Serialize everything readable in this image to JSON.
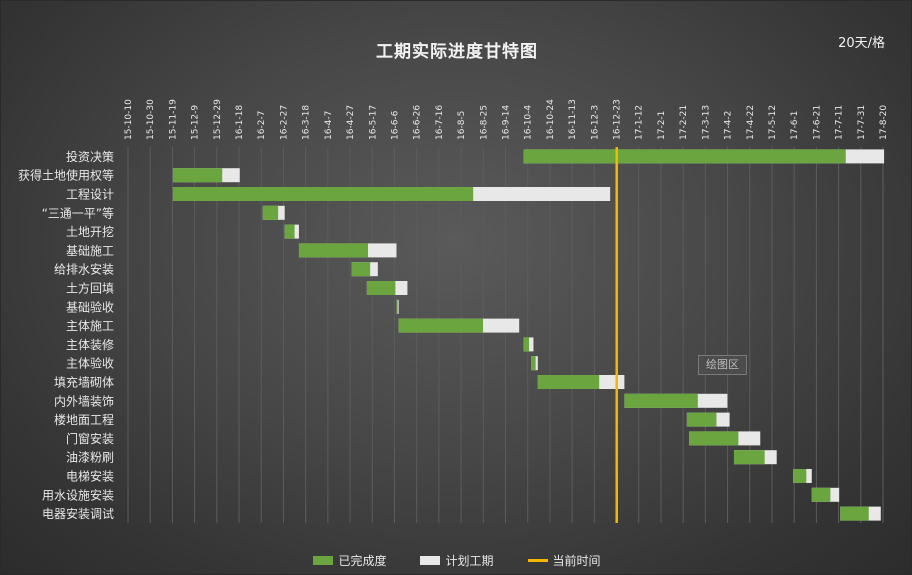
{
  "chart_data": {
    "type": "gantt",
    "title": "工期实际进度甘特图",
    "scale_note": "20天/格",
    "x_axis": {
      "type": "date",
      "range": [
        "2015-10-10",
        "2017-08-29"
      ],
      "tick_labels": [
        "15-10-10",
        "15-10-30",
        "15-11-19",
        "15-12-9",
        "15-12-29",
        "16-1-18",
        "16-2-7",
        "16-2-27",
        "16-3-18",
        "16-4-7",
        "16-4-27",
        "16-5-17",
        "16-6-6",
        "16-6-26",
        "16-7-16",
        "16-8-5",
        "16-8-25",
        "16-9-14",
        "16-10-4",
        "16-10-24",
        "16-11-13",
        "16-12-3",
        "16-12-23",
        "17-1-12",
        "17-2-1",
        "17-2-21",
        "17-3-13",
        "17-4-2",
        "17-4-22",
        "17-5-12",
        "17-6-1",
        "17-6-21",
        "17-7-11",
        "17-7-31",
        "17-8-20"
      ]
    },
    "current_date": "2016-12-29",
    "tasks": [
      {
        "name": "投资决策",
        "start": "2016-10-05",
        "completed_end": "2017-07-26",
        "planned_end": "2017-08-30"
      },
      {
        "name": "获得土地使用权等",
        "start": "2015-11-20",
        "completed_end": "2016-01-04",
        "planned_end": "2016-01-20"
      },
      {
        "name": "工程设计",
        "start": "2015-11-20",
        "completed_end": "2016-08-20",
        "planned_end": "2016-12-23"
      },
      {
        "name": "“三通一平”等",
        "start": "2016-02-10",
        "completed_end": "2016-02-24",
        "planned_end": "2016-03-01"
      },
      {
        "name": "土地开挖",
        "start": "2016-03-01",
        "completed_end": "2016-03-10",
        "planned_end": "2016-03-14"
      },
      {
        "name": "基础施工",
        "start": "2016-03-14",
        "completed_end": "2016-05-16",
        "planned_end": "2016-06-11"
      },
      {
        "name": "给排水安装",
        "start": "2016-05-01",
        "completed_end": "2016-05-18",
        "planned_end": "2016-05-25"
      },
      {
        "name": "土方回填",
        "start": "2016-05-15",
        "completed_end": "2016-06-10",
        "planned_end": "2016-06-21"
      },
      {
        "name": "基础验收",
        "start": "2016-06-11",
        "completed_end": "2016-06-11",
        "planned_end": "2016-06-13"
      },
      {
        "name": "主体施工",
        "start": "2016-06-13",
        "completed_end": "2016-08-29",
        "planned_end": "2016-10-01"
      },
      {
        "name": "主体装修",
        "start": "2016-10-05",
        "completed_end": "2016-10-10",
        "planned_end": "2016-10-14"
      },
      {
        "name": "主体验收",
        "start": "2016-10-12",
        "completed_end": "2016-10-16",
        "planned_end": "2016-10-18"
      },
      {
        "name": "填充墙砌体",
        "start": "2016-10-18",
        "completed_end": "2016-12-13",
        "planned_end": "2017-01-05"
      },
      {
        "name": "内外墙装饰",
        "start": "2017-01-05",
        "completed_end": "2017-03-13",
        "planned_end": "2017-04-09"
      },
      {
        "name": "楼地面工程",
        "start": "2017-03-03",
        "completed_end": "2017-03-30",
        "planned_end": "2017-04-11"
      },
      {
        "name": "门窗安装",
        "start": "2017-03-05",
        "completed_end": "2017-04-19",
        "planned_end": "2017-05-09"
      },
      {
        "name": "油漆粉刷",
        "start": "2017-04-15",
        "completed_end": "2017-05-13",
        "planned_end": "2017-05-24"
      },
      {
        "name": "电梯安装",
        "start": "2017-06-08",
        "completed_end": "2017-06-20",
        "planned_end": "2017-06-25"
      },
      {
        "name": "用水设施安装",
        "start": "2017-06-25",
        "completed_end": "2017-07-12",
        "planned_end": "2017-07-20"
      },
      {
        "name": "电器安装调试",
        "start": "2017-07-21",
        "completed_end": "2017-08-16",
        "planned_end": "2017-08-27"
      }
    ],
    "legend": {
      "placement": "bottom",
      "items": [
        "已完成度",
        "计划工期",
        "当前时间"
      ]
    },
    "plot_area_tag": "绘图区",
    "grid": true,
    "colors": {
      "completed": "#6aa53f",
      "planned": "#e8e8e8",
      "current": "#f5b800",
      "grid": "#5c5c5c",
      "text": "#e8e8e8"
    }
  }
}
